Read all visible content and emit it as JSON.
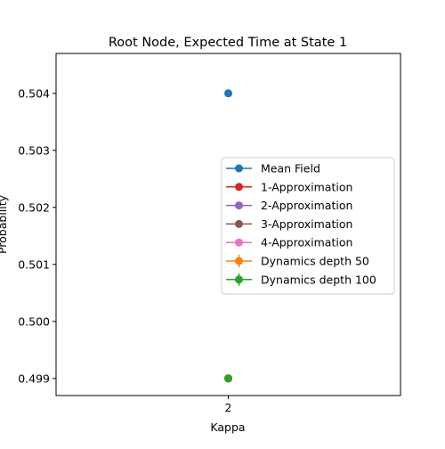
{
  "chart_data": {
    "type": "scatter",
    "title": "Root Node, Expected Time at State 1",
    "xlabel": "Kappa",
    "ylabel": "Probability",
    "x": [
      2
    ],
    "xticks": [
      "2"
    ],
    "ylim": [
      0.4987,
      0.5047
    ],
    "yticks": [
      "0.499",
      "0.500",
      "0.501",
      "0.502",
      "0.503",
      "0.504"
    ],
    "grid": false,
    "legend_position": "center-right",
    "series": [
      {
        "name": "Mean Field",
        "values": [
          0.504
        ],
        "color": "#1f77b4",
        "errorbar": false
      },
      {
        "name": "1-Approximation",
        "values": [
          0.499
        ],
        "color": "#d62728",
        "errorbar": false
      },
      {
        "name": "2-Approximation",
        "values": [
          0.499
        ],
        "color": "#9467bd",
        "errorbar": false
      },
      {
        "name": "3-Approximation",
        "values": [
          0.499
        ],
        "color": "#8c564b",
        "errorbar": false
      },
      {
        "name": "4-Approximation",
        "values": [
          0.499
        ],
        "color": "#e377c2",
        "errorbar": false
      },
      {
        "name": "Dynamics depth 50",
        "values": [
          0.499
        ],
        "color": "#ff7f0e",
        "errorbar": true
      },
      {
        "name": "Dynamics depth 100",
        "values": [
          0.499
        ],
        "color": "#2ca02c",
        "errorbar": true
      }
    ]
  }
}
